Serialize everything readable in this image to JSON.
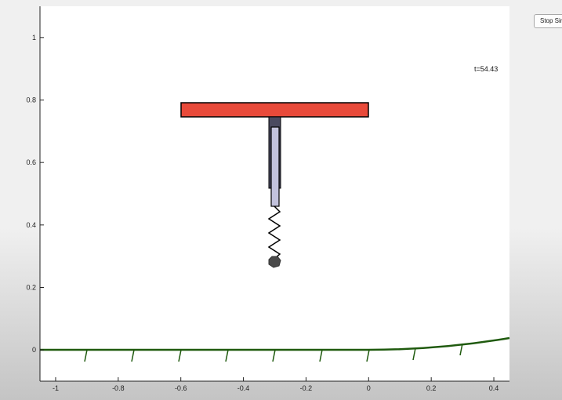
{
  "controls": {
    "stop_button_label": "Stop Sim"
  },
  "plot": {
    "time_label": "t=54.43",
    "xlim": [
      -1.05,
      0.45
    ],
    "ylim": [
      -0.1,
      1.1
    ],
    "x_ticks": [
      {
        "value": -1,
        "label": "-1"
      },
      {
        "value": -0.8,
        "label": "-0.8"
      },
      {
        "value": -0.6,
        "label": "-0.6"
      },
      {
        "value": -0.4,
        "label": "-0.4"
      },
      {
        "value": -0.2,
        "label": "-0.2"
      },
      {
        "value": 0,
        "label": "0"
      },
      {
        "value": 0.2,
        "label": "0.2"
      },
      {
        "value": 0.4,
        "label": "0.4"
      }
    ],
    "y_ticks": [
      {
        "value": 0,
        "label": "0"
      },
      {
        "value": 0.2,
        "label": "0.2"
      },
      {
        "value": 0.4,
        "label": "0.4"
      },
      {
        "value": 0.6,
        "label": "0.6"
      },
      {
        "value": 0.8,
        "label": "0.8"
      },
      {
        "value": 1,
        "label": "1"
      }
    ],
    "colors": {
      "ground": "#1f5a0e",
      "platform": "#e84a3a",
      "piston_outer": "#4a4a60",
      "piston_inner": "#c2c2dc",
      "foot": "#4a4a4a",
      "spring": "#000000"
    }
  }
}
